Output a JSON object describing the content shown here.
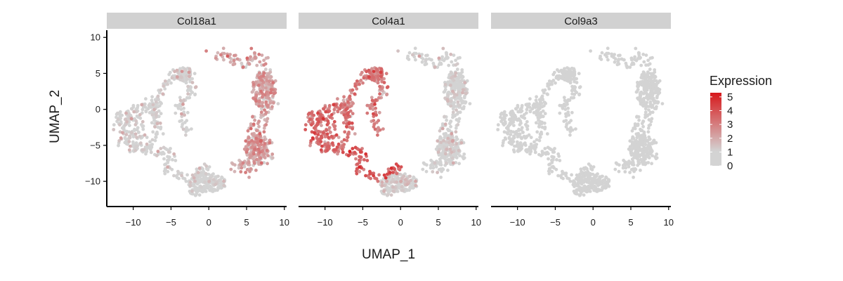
{
  "chart_data": {
    "type": "scatter",
    "xlabel": "UMAP_1",
    "ylabel": "UMAP_2",
    "xlim": [
      -13.5,
      10.3
    ],
    "ylim": [
      -13.5,
      11
    ],
    "x_ticks": [
      -10,
      -5,
      0,
      5,
      10
    ],
    "y_ticks": [
      10,
      5,
      0,
      -5,
      -10
    ],
    "x_tick_labels": [
      "−10",
      "−5",
      "0",
      "5",
      "10"
    ],
    "y_tick_labels": [
      "10",
      "5",
      "0",
      "−5",
      "−10"
    ],
    "facets": [
      {
        "title": "Col18a1",
        "expression_by_cluster": {
          "left": 0.6,
          "bridge": 0.5,
          "top_loop": 0.7,
          "right": 1.9,
          "bottom": 0.3
        }
      },
      {
        "title": "Col4a1",
        "expression_by_cluster": {
          "left": 3.1,
          "bridge": 3.5,
          "top_loop": 2.8,
          "right": 0.4,
          "bottom": 0.7
        }
      },
      {
        "title": "Col9a3",
        "expression_by_cluster": {
          "left": 0.0,
          "bridge": 0.0,
          "top_loop": 0.0,
          "right": 0.0,
          "bottom": 0.0
        }
      }
    ],
    "legend": {
      "title": "Expression",
      "position": "right",
      "range": [
        0,
        5.3
      ],
      "breaks": [
        5,
        4,
        3,
        2,
        1,
        0
      ],
      "break_labels": [
        "5",
        "4",
        "3",
        "2",
        "1",
        "0"
      ],
      "colors": {
        "low": "#d3d3d3",
        "high": "#d7191c"
      }
    },
    "colors": {
      "background": "#ffffff",
      "strip": "#d1d1d1",
      "axis": "#000000"
    }
  }
}
